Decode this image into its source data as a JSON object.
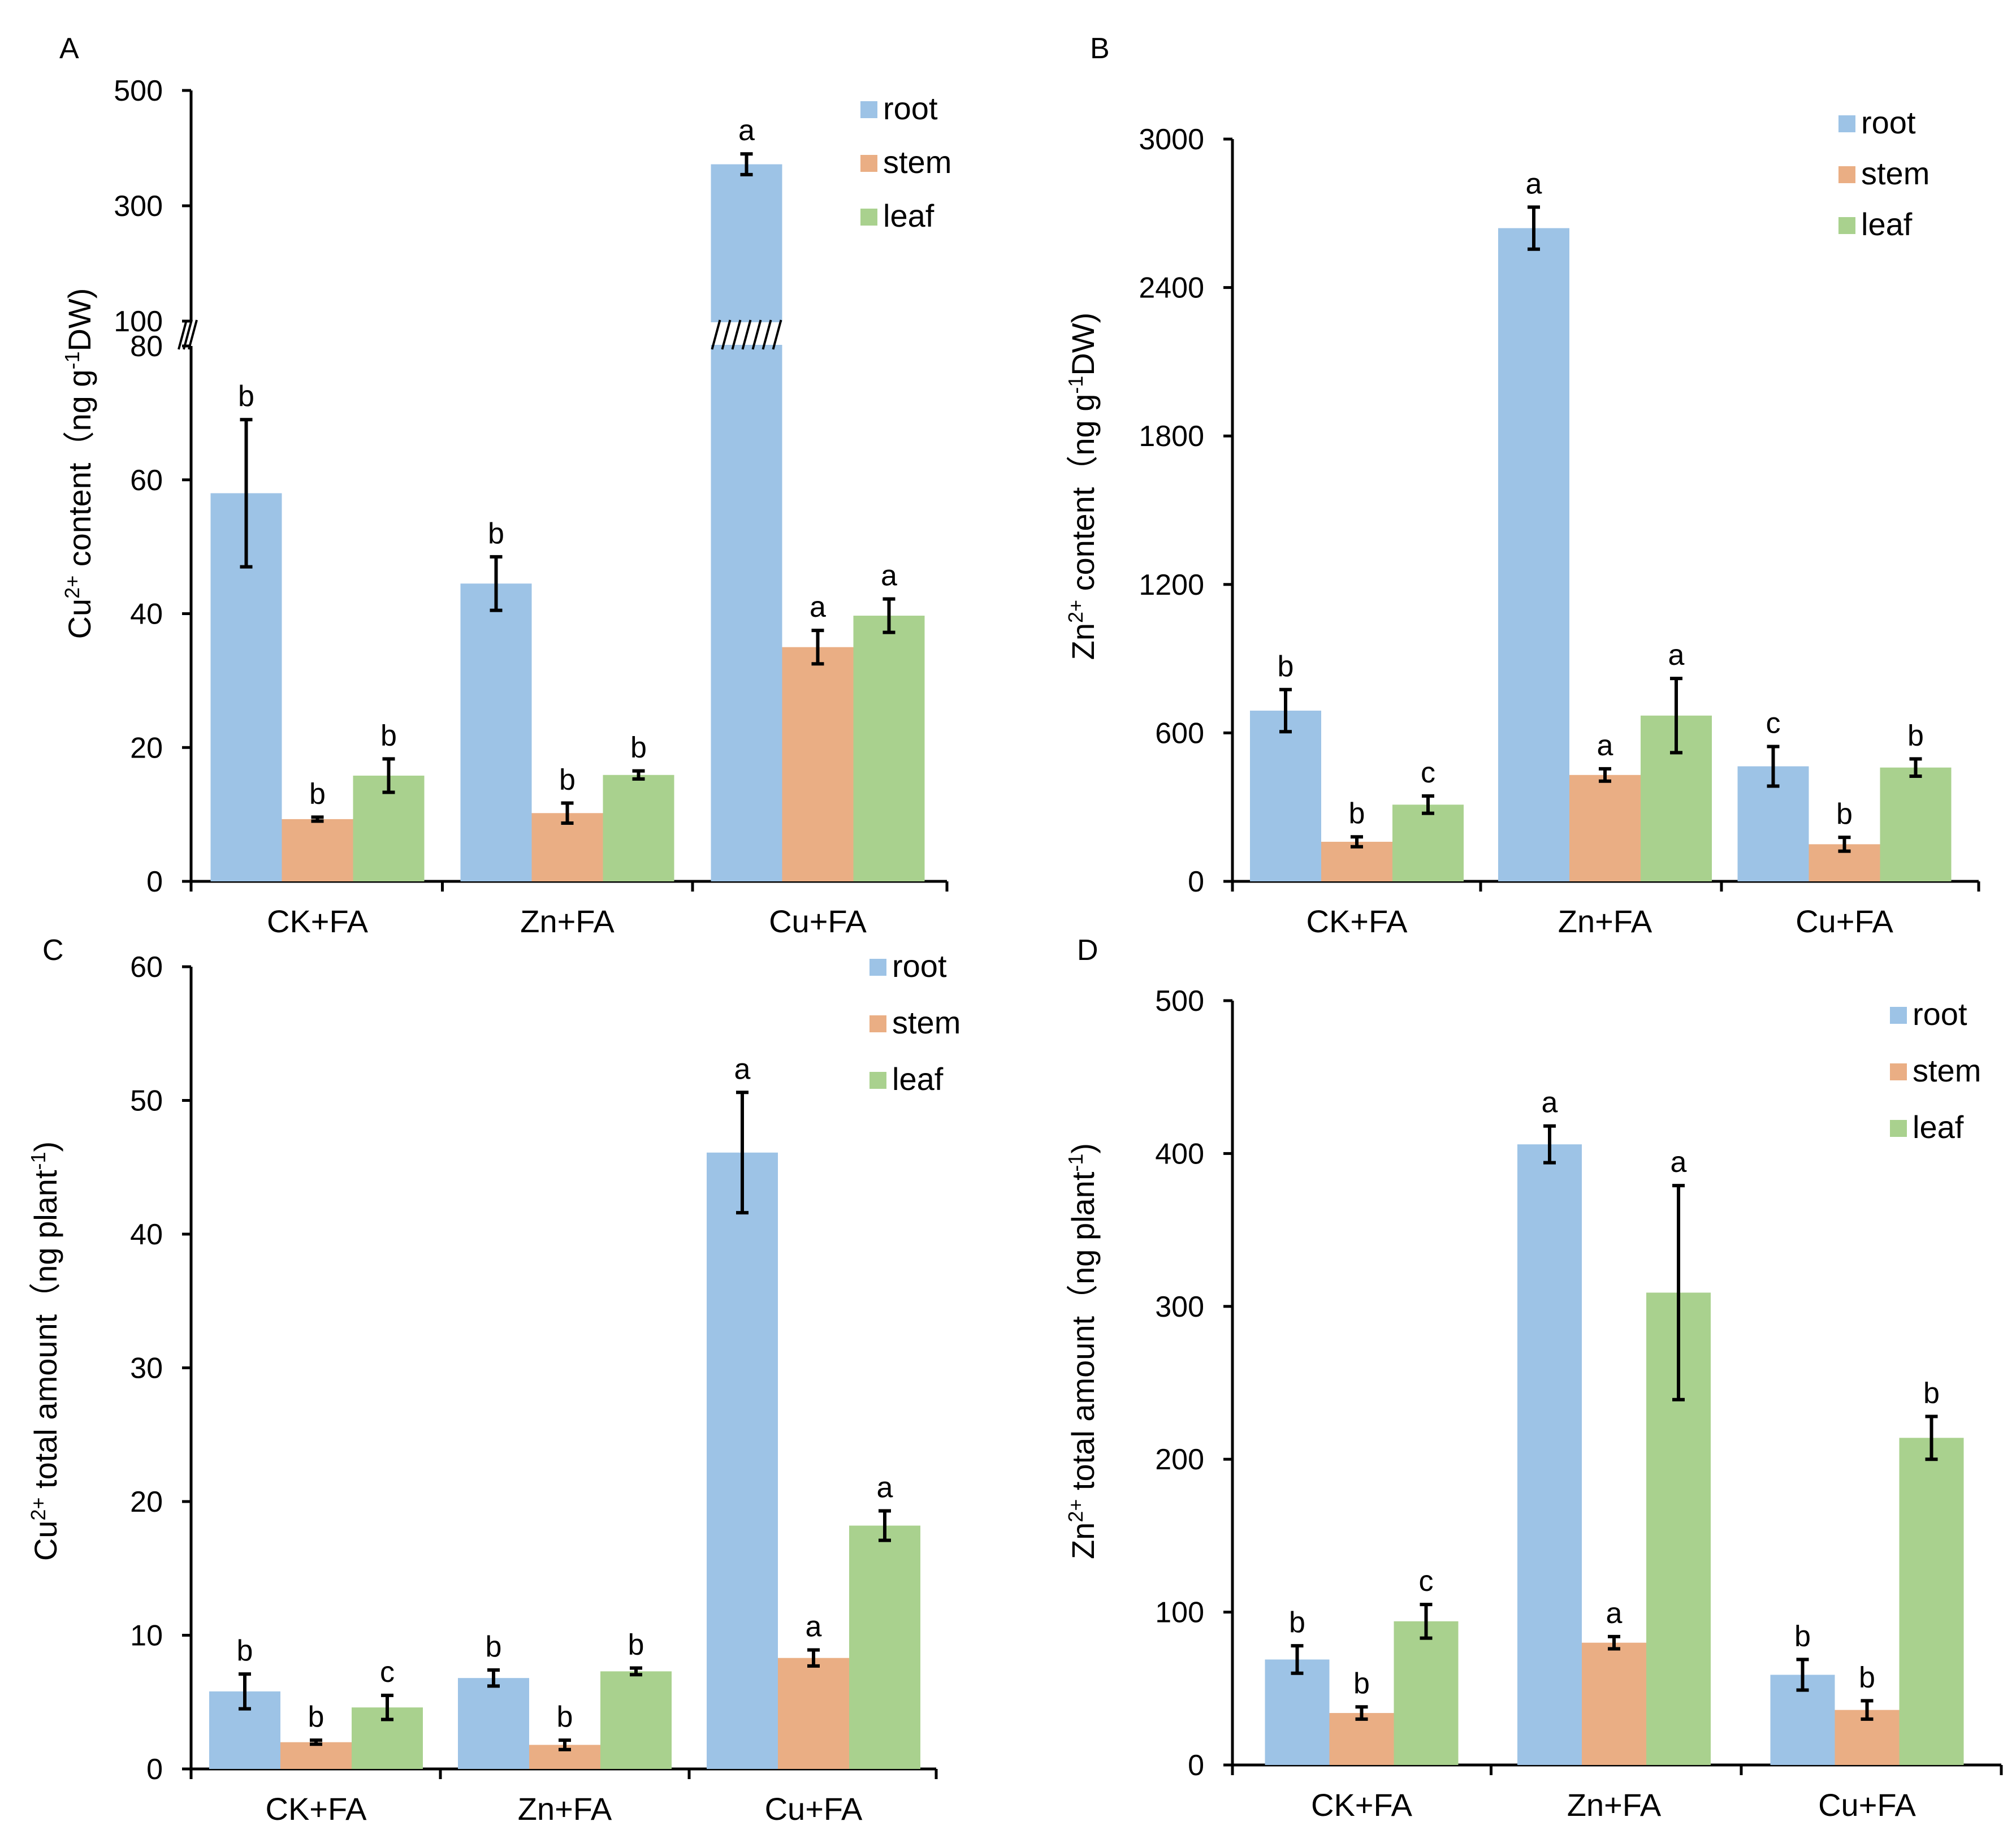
{
  "chart_data": [
    {
      "panel": "A",
      "type": "bar",
      "ylabel_html": "Cu²⁺ content (ng g⁻¹DW)",
      "ylabel_base": "Cu",
      "ylabel_sup": "2+",
      "ylabel_mid": " content（ng  g",
      "ylabel_sup2": "-1",
      "ylabel_end": "DW)",
      "categories": [
        "CK+FA",
        "Zn+FA",
        "Cu+FA"
      ],
      "axis_break": {
        "lower": [
          0,
          80
        ],
        "upper": [
          100,
          500
        ]
      },
      "lower_ticks": [
        "0",
        "20",
        "40",
        "60",
        "80"
      ],
      "upper_ticks": [
        "100",
        "300",
        "500"
      ],
      "series": [
        {
          "name": "root",
          "values": [
            58,
            44.5,
            372
          ],
          "errors": [
            11,
            4,
            18
          ],
          "letters": [
            "b",
            "b",
            "a"
          ]
        },
        {
          "name": "stem",
          "values": [
            9.3,
            10.2,
            35
          ],
          "errors": [
            0.3,
            1.5,
            2.5
          ],
          "letters": [
            "b",
            "b",
            "a"
          ]
        },
        {
          "name": "leaf",
          "values": [
            15.8,
            15.9,
            39.7
          ],
          "errors": [
            2.5,
            0.6,
            2.5
          ],
          "letters": [
            "b",
            "b",
            "a"
          ]
        }
      ]
    },
    {
      "panel": "B",
      "type": "bar",
      "ylabel_base": "Zn",
      "ylabel_sup": "2+",
      "ylabel_mid": " content（ng  g",
      "ylabel_sup2": "-1",
      "ylabel_end": "DW)",
      "categories": [
        "CK+FA",
        "Zn+FA",
        "Cu+FA"
      ],
      "ylim": [
        0,
        3000
      ],
      "ticks": [
        "0",
        "600",
        "1200",
        "1800",
        "2400",
        "3000"
      ],
      "series": [
        {
          "name": "root",
          "values": [
            690,
            2640,
            465
          ],
          "errors": [
            85,
            85,
            80
          ],
          "letters": [
            "b",
            "a",
            "c"
          ]
        },
        {
          "name": "stem",
          "values": [
            160,
            430,
            150
          ],
          "errors": [
            20,
            25,
            28
          ],
          "letters": [
            "b",
            "a",
            "b"
          ]
        },
        {
          "name": "leaf",
          "values": [
            310,
            670,
            460
          ],
          "errors": [
            35,
            150,
            35
          ],
          "letters": [
            "c",
            "a",
            "b"
          ]
        }
      ]
    },
    {
      "panel": "C",
      "type": "bar",
      "ylabel_base": "Cu",
      "ylabel_sup": "2+",
      "ylabel_mid": " total amount（ng  plant",
      "ylabel_sup2": "-1",
      "ylabel_end": ")",
      "categories": [
        "CK+FA",
        "Zn+FA",
        "Cu+FA"
      ],
      "ylim": [
        0,
        60
      ],
      "ticks": [
        "0",
        "10",
        "20",
        "30",
        "40",
        "50",
        "60"
      ],
      "series": [
        {
          "name": "root",
          "values": [
            5.8,
            6.8,
            46.1
          ],
          "errors": [
            1.3,
            0.6,
            4.5
          ],
          "letters": [
            "b",
            "b",
            "a"
          ]
        },
        {
          "name": "stem",
          "values": [
            2.0,
            1.8,
            8.3
          ],
          "errors": [
            0.15,
            0.35,
            0.6
          ],
          "letters": [
            "b",
            "b",
            "a"
          ]
        },
        {
          "name": "leaf",
          "values": [
            4.6,
            7.3,
            18.2
          ],
          "errors": [
            0.9,
            0.25,
            1.1
          ],
          "letters": [
            "c",
            "b",
            "a"
          ]
        }
      ]
    },
    {
      "panel": "D",
      "type": "bar",
      "ylabel_base": "Zn",
      "ylabel_sup": "2+",
      "ylabel_mid": " total amount（ng  plant",
      "ylabel_sup2": "-1",
      "ylabel_end": ")",
      "categories": [
        "CK+FA",
        "Zn+FA",
        "Cu+FA"
      ],
      "ylim": [
        0,
        500
      ],
      "ticks": [
        "0",
        "100",
        "200",
        "300",
        "400",
        "500"
      ],
      "series": [
        {
          "name": "root",
          "values": [
            69,
            406,
            59
          ],
          "errors": [
            9,
            12,
            10
          ],
          "letters": [
            "b",
            "a",
            "b"
          ]
        },
        {
          "name": "stem",
          "values": [
            34,
            80,
            36
          ],
          "errors": [
            4,
            4,
            6
          ],
          "letters": [
            "b",
            "a",
            "b"
          ]
        },
        {
          "name": "leaf",
          "values": [
            94,
            309,
            214
          ],
          "errors": [
            11,
            70,
            14
          ],
          "letters": [
            "c",
            "a",
            "b"
          ]
        }
      ]
    }
  ],
  "colors": {
    "root": "#9dc3e6",
    "stem": "#eaae84",
    "leaf": "#a9d18e",
    "axis": "#000000"
  }
}
